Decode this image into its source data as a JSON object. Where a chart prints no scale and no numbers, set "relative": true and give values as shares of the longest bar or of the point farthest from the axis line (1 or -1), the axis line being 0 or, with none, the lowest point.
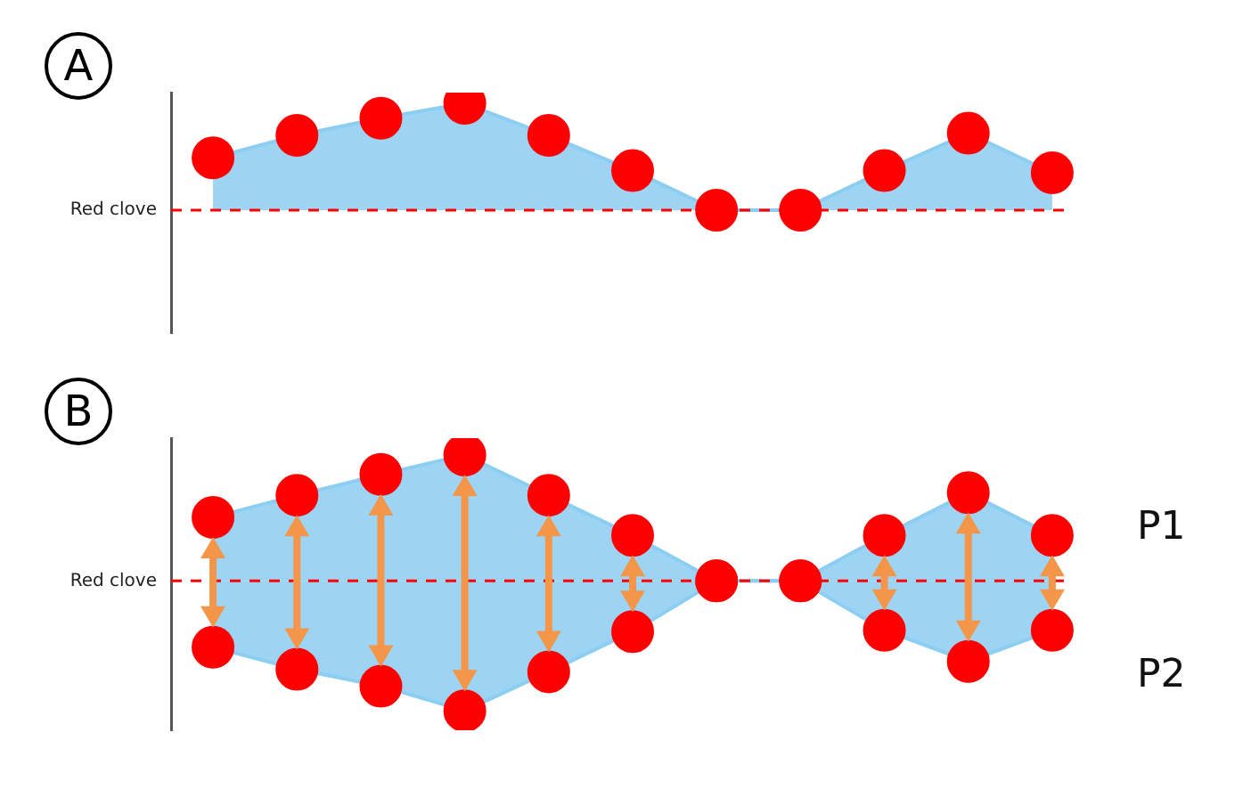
{
  "chart_data": [
    {
      "type": "area",
      "title": "A",
      "relative": true,
      "marker": "circle",
      "categories": [
        null,
        null,
        null,
        null,
        null,
        null,
        null,
        null,
        null,
        null,
        null
      ],
      "series": [
        {
          "color": "#8ccdf2",
          "colors": [
            "#ff0000",
            "#ff0000",
            "#ff0000",
            "#ff0000",
            "#ff0000",
            "#ff0000",
            "#ff0000",
            "#ff0000",
            "#ff0000",
            "#ff0000",
            "#ff0000"
          ],
          "values": [
            0.49,
            0.7,
            0.86,
            1,
            0.7,
            0.37,
            0,
            0,
            0.37,
            0.72,
            0.35
          ]
        }
      ],
      "ref_lines": [
        {
          "axis": "y",
          "value": 0,
          "label": "Red clove",
          "color": "#ff0000",
          "line_style": "dashed"
        }
      ]
    },
    {
      "type": "area",
      "title": "B",
      "relative": true,
      "marker": "circle",
      "categories": [
        null,
        null,
        null,
        null,
        null,
        null,
        null,
        null,
        null,
        null,
        null
      ],
      "series": [
        {
          "name": "P1",
          "color": "#8ccdf2",
          "colors": [
            "#ff0000",
            "#ff0000",
            "#ff0000",
            "#ff0000",
            "#ff0000",
            "#ff0000",
            "#ff0000",
            "#ff0000",
            "#ff0000",
            "#ff0000",
            "#ff0000"
          ],
          "values": [
            0.49,
            0.66,
            0.82,
            0.97,
            0.66,
            0.35,
            0,
            0,
            0.35,
            0.68,
            0.35
          ]
        },
        {
          "name": "P2",
          "color": "#8ccdf2",
          "colors": [
            "#ff0000",
            "#ff0000",
            "#ff0000",
            "#ff0000",
            "#ff0000",
            "#ff0000",
            "#ff0000",
            "#ff0000",
            "#ff0000",
            "#ff0000",
            "#ff0000"
          ],
          "values": [
            -0.51,
            -0.68,
            -0.81,
            -1,
            -0.7,
            -0.39,
            0,
            0,
            -0.38,
            -0.62,
            -0.38
          ]
        }
      ],
      "ref_lines": [
        {
          "axis": "y",
          "value": 0,
          "label": "Red clove",
          "color": "#ff0000",
          "line_style": "dashed"
        }
      ]
    }
  ]
}
